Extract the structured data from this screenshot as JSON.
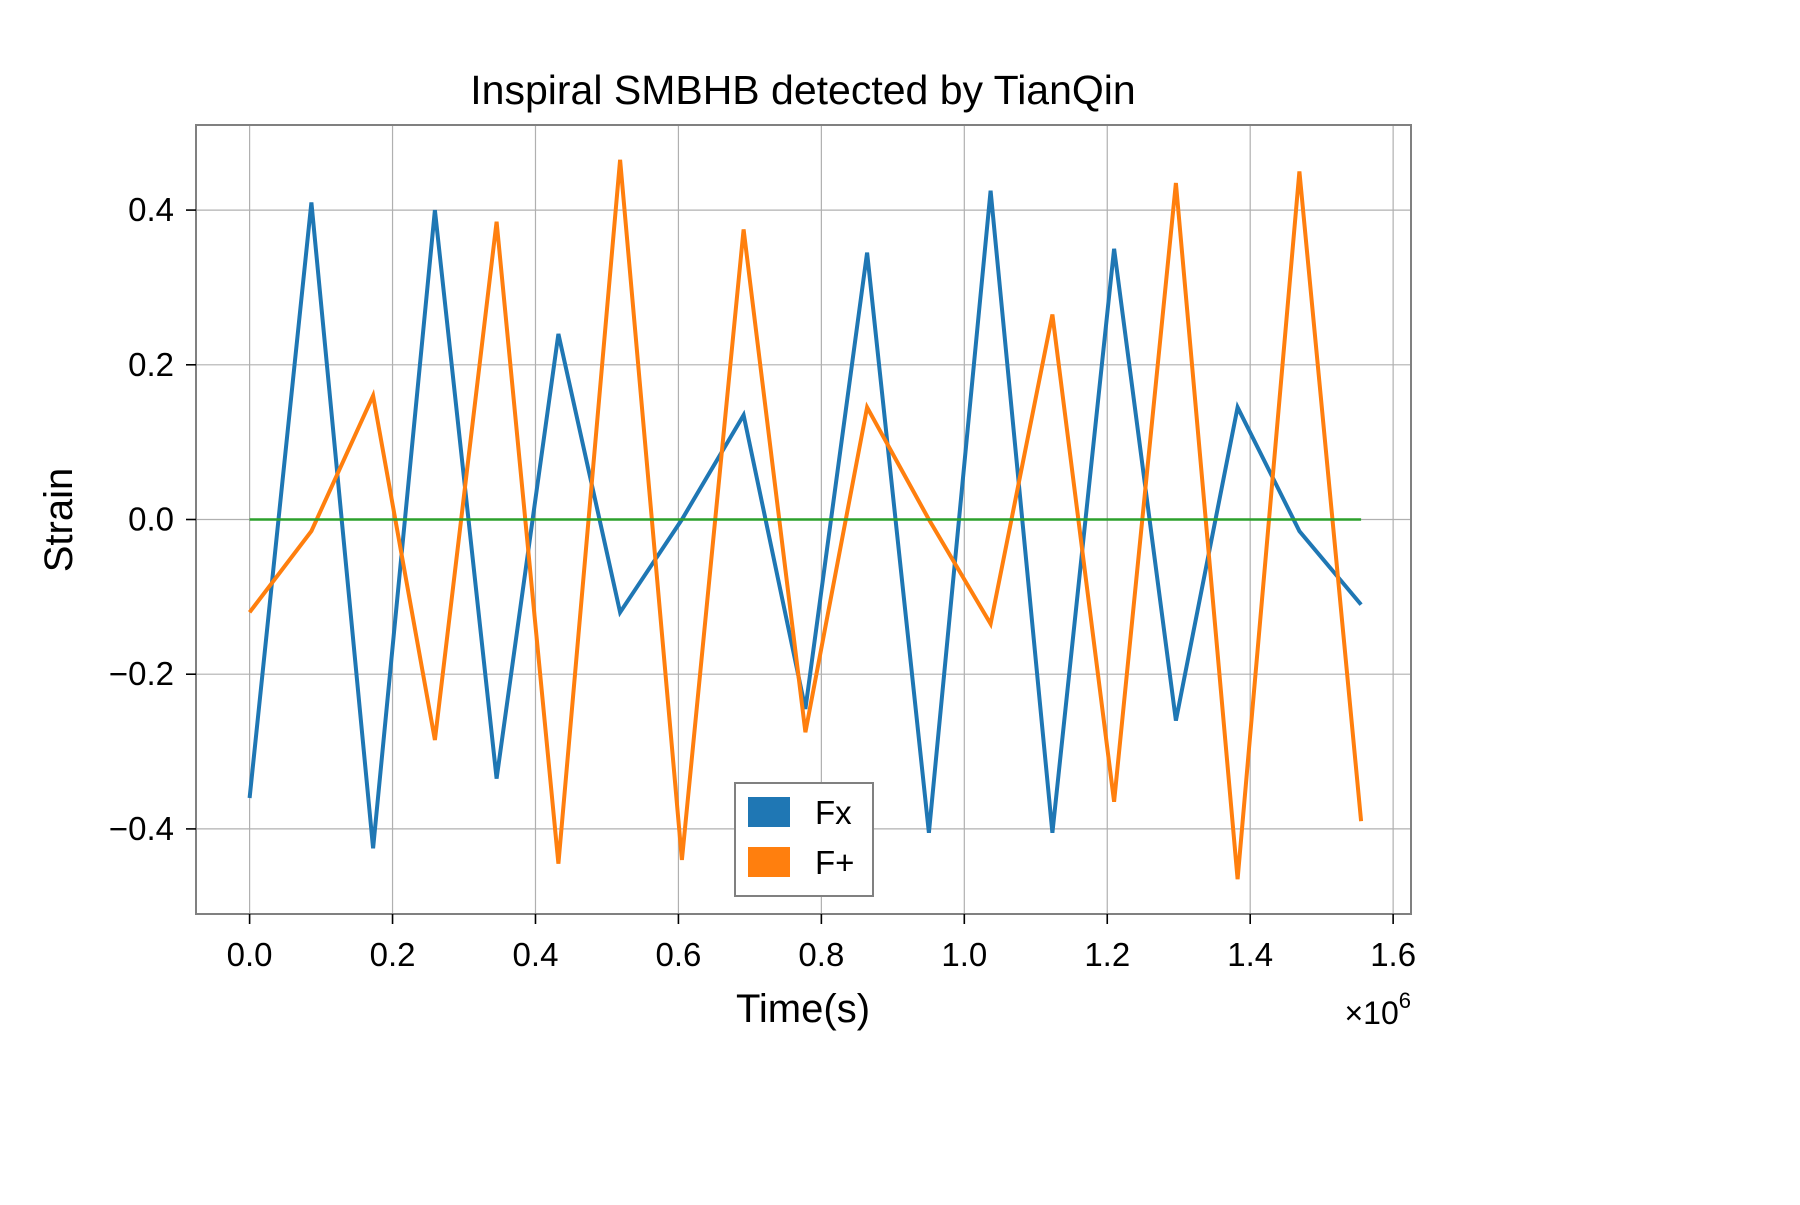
{
  "chart_data": {
    "type": "line",
    "title": "Inspiral SMBHB detected by TianQin",
    "xlabel": "Time(s)",
    "ylabel": "Strain",
    "x_offset_label": "×10",
    "x_offset_exponent": "6",
    "xlim": [
      -0.075,
      1.625
    ],
    "ylim": [
      -0.51,
      0.51
    ],
    "x_ticks": [
      0.0,
      0.2,
      0.4,
      0.6,
      0.8,
      1.0,
      1.2,
      1.4,
      1.6
    ],
    "x_tick_labels": [
      "0.0",
      "0.2",
      "0.4",
      "0.6",
      "0.8",
      "1.0",
      "1.2",
      "1.4",
      "1.6"
    ],
    "y_ticks": [
      0.4,
      0.2,
      0.0,
      -0.2,
      -0.4
    ],
    "y_tick_labels": [
      "0.4",
      "0.2",
      "0.0",
      "−0.2",
      "−0.4"
    ],
    "grid": true,
    "legend_position": "bottom-center",
    "x": [
      0.0,
      0.0864,
      0.1728,
      0.2592,
      0.3456,
      0.432,
      0.5184,
      0.6048,
      0.6912,
      0.7776,
      0.864,
      0.9504,
      1.0368,
      1.1232,
      1.2096,
      1.296,
      1.3824,
      1.4688,
      1.5552
    ],
    "series": [
      {
        "name": "Fx",
        "color": "#1f77b4",
        "legend": true,
        "values": [
          -0.36,
          0.41,
          -0.425,
          0.4,
          -0.335,
          0.24,
          -0.12,
          0.0,
          0.135,
          -0.245,
          0.345,
          -0.405,
          0.425,
          -0.405,
          0.35,
          -0.26,
          0.145,
          -0.015,
          -0.11
        ]
      },
      {
        "name": "F+",
        "color": "#ff7f0e",
        "legend": true,
        "values": [
          -0.12,
          -0.015,
          0.16,
          -0.285,
          0.385,
          -0.445,
          0.465,
          -0.44,
          0.375,
          -0.275,
          0.145,
          0.0,
          -0.135,
          0.265,
          -0.365,
          0.435,
          -0.465,
          0.45,
          -0.39
        ]
      },
      {
        "color": "#2ca02c",
        "legend": false,
        "values": [
          0,
          0,
          0,
          0,
          0,
          0,
          0,
          0,
          0,
          0,
          0,
          0,
          0,
          0,
          0,
          0,
          0,
          0,
          0
        ]
      }
    ]
  }
}
